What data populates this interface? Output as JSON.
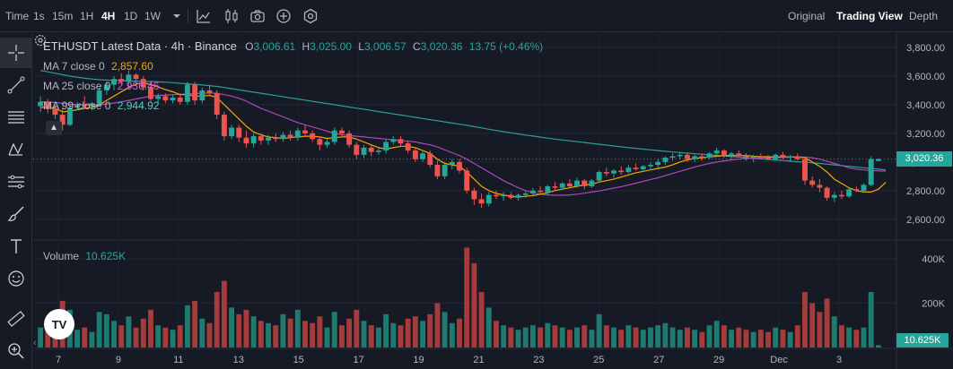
{
  "toolbar": {
    "time_label": "Time",
    "intervals": [
      "1s",
      "15m",
      "1H",
      "4H",
      "1D",
      "1W"
    ],
    "active_interval": "4H",
    "icons": [
      "chevron-down-icon",
      "line-chart-icon",
      "candles-icon",
      "camera-icon",
      "add-indicator-icon",
      "settings-gear-icon"
    ],
    "views": [
      "Original",
      "Trading View",
      "Depth"
    ],
    "active_view": "Trading View"
  },
  "left_tools": [
    "crosshair-icon",
    "trend-line-icon",
    "fib-lines-icon",
    "pattern-icon",
    "projection-icon",
    "brush-icon",
    "text-tool-icon",
    "emoji-icon",
    "ruler-icon",
    "zoom-in-icon"
  ],
  "legend": {
    "title": "ETHUSDT Latest Data · 4h · Binance",
    "o_label": "O",
    "o": "3,006.61",
    "h_label": "H",
    "h": "3,025.00",
    "l_label": "L",
    "l": "3,006.57",
    "c_label": "C",
    "c": "3,020.36",
    "change": "13.75 (+0.46%)",
    "ma7_label": "MA 7 close 0",
    "ma7_value": "2,857.60",
    "ma25_label": "MA 25 close 0",
    "ma25_value": "2,936.46",
    "ma99_label": "MA 99 close 0",
    "ma99_value": "2,944.92"
  },
  "volume": {
    "label": "Volume",
    "value": "10.625K",
    "tag": "10.625K"
  },
  "price_tag": "3,020.36",
  "logo_text": "TV",
  "colors": {
    "up": "#26a69a",
    "down": "#ef5350",
    "ma7": "#f7a600",
    "ma25": "#ab47bc",
    "ma99": "#2e9e94",
    "bg": "#161a25"
  },
  "chart_data": {
    "type": "candlestick",
    "price_axis_ticks": [
      3800,
      3600,
      3400,
      3200,
      3000,
      2800,
      2600
    ],
    "price_axis_labels": [
      "3,800.00",
      "3,600.00",
      "3,400.00",
      "3,200.00",
      "3,000.00",
      "2,800.00",
      "2,600.00"
    ],
    "volume_axis_ticks": [
      400000,
      200000
    ],
    "volume_axis_labels": [
      "400K",
      "200K"
    ],
    "x_tick_labels": [
      "7",
      "9",
      "11",
      "13",
      "15",
      "17",
      "19",
      "21",
      "23",
      "25",
      "27",
      "29",
      "Dec",
      "3"
    ],
    "ylim": [
      2480,
      3900
    ],
    "volume_ylim": [
      0,
      480000
    ],
    "candles": [
      {
        "o": 3390,
        "h": 3460,
        "l": 3350,
        "c": 3420,
        "v": 90000
      },
      {
        "o": 3420,
        "h": 3440,
        "l": 3340,
        "c": 3370,
        "v": 110000
      },
      {
        "o": 3370,
        "h": 3400,
        "l": 3300,
        "c": 3330,
        "v": 130000
      },
      {
        "o": 3330,
        "h": 3380,
        "l": 3220,
        "c": 3260,
        "v": 210000
      },
      {
        "o": 3260,
        "h": 3400,
        "l": 3250,
        "c": 3380,
        "v": 170000
      },
      {
        "o": 3380,
        "h": 3420,
        "l": 3360,
        "c": 3400,
        "v": 80000
      },
      {
        "o": 3400,
        "h": 3460,
        "l": 3370,
        "c": 3390,
        "v": 90000
      },
      {
        "o": 3390,
        "h": 3420,
        "l": 3360,
        "c": 3410,
        "v": 70000
      },
      {
        "o": 3410,
        "h": 3520,
        "l": 3390,
        "c": 3500,
        "v": 160000
      },
      {
        "o": 3500,
        "h": 3560,
        "l": 3470,
        "c": 3540,
        "v": 150000
      },
      {
        "o": 3540,
        "h": 3600,
        "l": 3500,
        "c": 3580,
        "v": 120000
      },
      {
        "o": 3580,
        "h": 3620,
        "l": 3540,
        "c": 3560,
        "v": 100000
      },
      {
        "o": 3560,
        "h": 3640,
        "l": 3530,
        "c": 3610,
        "v": 140000
      },
      {
        "o": 3610,
        "h": 3620,
        "l": 3560,
        "c": 3580,
        "v": 90000
      },
      {
        "o": 3580,
        "h": 3600,
        "l": 3500,
        "c": 3520,
        "v": 130000
      },
      {
        "o": 3520,
        "h": 3560,
        "l": 3420,
        "c": 3440,
        "v": 170000
      },
      {
        "o": 3440,
        "h": 3480,
        "l": 3400,
        "c": 3460,
        "v": 100000
      },
      {
        "o": 3460,
        "h": 3480,
        "l": 3410,
        "c": 3430,
        "v": 90000
      },
      {
        "o": 3430,
        "h": 3470,
        "l": 3410,
        "c": 3450,
        "v": 80000
      },
      {
        "o": 3450,
        "h": 3480,
        "l": 3400,
        "c": 3420,
        "v": 100000
      },
      {
        "o": 3420,
        "h": 3560,
        "l": 3400,
        "c": 3540,
        "v": 190000
      },
      {
        "o": 3540,
        "h": 3560,
        "l": 3400,
        "c": 3430,
        "v": 210000
      },
      {
        "o": 3430,
        "h": 3520,
        "l": 3410,
        "c": 3500,
        "v": 130000
      },
      {
        "o": 3500,
        "h": 3540,
        "l": 3460,
        "c": 3480,
        "v": 110000
      },
      {
        "o": 3480,
        "h": 3500,
        "l": 3300,
        "c": 3330,
        "v": 250000
      },
      {
        "o": 3330,
        "h": 3350,
        "l": 3150,
        "c": 3180,
        "v": 300000
      },
      {
        "o": 3180,
        "h": 3260,
        "l": 3160,
        "c": 3240,
        "v": 180000
      },
      {
        "o": 3240,
        "h": 3260,
        "l": 3140,
        "c": 3170,
        "v": 150000
      },
      {
        "o": 3170,
        "h": 3220,
        "l": 3100,
        "c": 3130,
        "v": 170000
      },
      {
        "o": 3130,
        "h": 3200,
        "l": 3100,
        "c": 3180,
        "v": 140000
      },
      {
        "o": 3180,
        "h": 3200,
        "l": 3120,
        "c": 3150,
        "v": 120000
      },
      {
        "o": 3150,
        "h": 3190,
        "l": 3120,
        "c": 3170,
        "v": 110000
      },
      {
        "o": 3170,
        "h": 3200,
        "l": 3140,
        "c": 3160,
        "v": 100000
      },
      {
        "o": 3160,
        "h": 3210,
        "l": 3140,
        "c": 3190,
        "v": 150000
      },
      {
        "o": 3190,
        "h": 3220,
        "l": 3150,
        "c": 3170,
        "v": 130000
      },
      {
        "o": 3170,
        "h": 3240,
        "l": 3150,
        "c": 3220,
        "v": 170000
      },
      {
        "o": 3220,
        "h": 3260,
        "l": 3180,
        "c": 3200,
        "v": 120000
      },
      {
        "o": 3200,
        "h": 3220,
        "l": 3140,
        "c": 3160,
        "v": 110000
      },
      {
        "o": 3160,
        "h": 3180,
        "l": 3080,
        "c": 3120,
        "v": 140000
      },
      {
        "o": 3120,
        "h": 3160,
        "l": 3100,
        "c": 3140,
        "v": 90000
      },
      {
        "o": 3140,
        "h": 3240,
        "l": 3120,
        "c": 3220,
        "v": 160000
      },
      {
        "o": 3220,
        "h": 3240,
        "l": 3180,
        "c": 3200,
        "v": 100000
      },
      {
        "o": 3200,
        "h": 3220,
        "l": 3100,
        "c": 3120,
        "v": 130000
      },
      {
        "o": 3120,
        "h": 3140,
        "l": 3020,
        "c": 3050,
        "v": 170000
      },
      {
        "o": 3050,
        "h": 3120,
        "l": 3030,
        "c": 3100,
        "v": 120000
      },
      {
        "o": 3100,
        "h": 3120,
        "l": 3040,
        "c": 3070,
        "v": 100000
      },
      {
        "o": 3070,
        "h": 3100,
        "l": 3050,
        "c": 3080,
        "v": 90000
      },
      {
        "o": 3080,
        "h": 3160,
        "l": 3060,
        "c": 3140,
        "v": 150000
      },
      {
        "o": 3140,
        "h": 3180,
        "l": 3120,
        "c": 3160,
        "v": 110000
      },
      {
        "o": 3160,
        "h": 3180,
        "l": 3110,
        "c": 3130,
        "v": 100000
      },
      {
        "o": 3130,
        "h": 3150,
        "l": 3060,
        "c": 3080,
        "v": 130000
      },
      {
        "o": 3080,
        "h": 3100,
        "l": 3000,
        "c": 3020,
        "v": 140000
      },
      {
        "o": 3020,
        "h": 3080,
        "l": 3000,
        "c": 3060,
        "v": 120000
      },
      {
        "o": 3060,
        "h": 3080,
        "l": 2960,
        "c": 2980,
        "v": 150000
      },
      {
        "o": 2980,
        "h": 3010,
        "l": 2880,
        "c": 2900,
        "v": 200000
      },
      {
        "o": 2900,
        "h": 3000,
        "l": 2880,
        "c": 2980,
        "v": 160000
      },
      {
        "o": 2980,
        "h": 3020,
        "l": 2950,
        "c": 3000,
        "v": 110000
      },
      {
        "o": 3000,
        "h": 3020,
        "l": 2920,
        "c": 2940,
        "v": 130000
      },
      {
        "o": 2940,
        "h": 2960,
        "l": 2780,
        "c": 2800,
        "v": 450000
      },
      {
        "o": 2800,
        "h": 2820,
        "l": 2700,
        "c": 2740,
        "v": 380000
      },
      {
        "o": 2740,
        "h": 2780,
        "l": 2680,
        "c": 2710,
        "v": 250000
      },
      {
        "o": 2710,
        "h": 2790,
        "l": 2690,
        "c": 2770,
        "v": 180000
      },
      {
        "o": 2770,
        "h": 2800,
        "l": 2740,
        "c": 2760,
        "v": 120000
      },
      {
        "o": 2760,
        "h": 2790,
        "l": 2730,
        "c": 2770,
        "v": 100000
      },
      {
        "o": 2770,
        "h": 2790,
        "l": 2740,
        "c": 2750,
        "v": 90000
      },
      {
        "o": 2750,
        "h": 2780,
        "l": 2730,
        "c": 2770,
        "v": 80000
      },
      {
        "o": 2770,
        "h": 2800,
        "l": 2750,
        "c": 2780,
        "v": 90000
      },
      {
        "o": 2780,
        "h": 2820,
        "l": 2760,
        "c": 2800,
        "v": 100000
      },
      {
        "o": 2800,
        "h": 2830,
        "l": 2780,
        "c": 2790,
        "v": 90000
      },
      {
        "o": 2790,
        "h": 2840,
        "l": 2770,
        "c": 2830,
        "v": 110000
      },
      {
        "o": 2830,
        "h": 2860,
        "l": 2800,
        "c": 2820,
        "v": 100000
      },
      {
        "o": 2820,
        "h": 2860,
        "l": 2810,
        "c": 2850,
        "v": 90000
      },
      {
        "o": 2850,
        "h": 2880,
        "l": 2820,
        "c": 2830,
        "v": 80000
      },
      {
        "o": 2830,
        "h": 2890,
        "l": 2820,
        "c": 2870,
        "v": 90000
      },
      {
        "o": 2870,
        "h": 2880,
        "l": 2810,
        "c": 2830,
        "v": 100000
      },
      {
        "o": 2830,
        "h": 2880,
        "l": 2820,
        "c": 2870,
        "v": 80000
      },
      {
        "o": 2870,
        "h": 2940,
        "l": 2860,
        "c": 2930,
        "v": 150000
      },
      {
        "o": 2930,
        "h": 2960,
        "l": 2900,
        "c": 2920,
        "v": 100000
      },
      {
        "o": 2920,
        "h": 2950,
        "l": 2890,
        "c": 2940,
        "v": 90000
      },
      {
        "o": 2940,
        "h": 2970,
        "l": 2910,
        "c": 2930,
        "v": 80000
      },
      {
        "o": 2930,
        "h": 2980,
        "l": 2920,
        "c": 2960,
        "v": 100000
      },
      {
        "o": 2960,
        "h": 2990,
        "l": 2940,
        "c": 2950,
        "v": 90000
      },
      {
        "o": 2950,
        "h": 2980,
        "l": 2930,
        "c": 2970,
        "v": 80000
      },
      {
        "o": 2970,
        "h": 3000,
        "l": 2950,
        "c": 2980,
        "v": 90000
      },
      {
        "o": 2980,
        "h": 3020,
        "l": 2960,
        "c": 3000,
        "v": 100000
      },
      {
        "o": 3000,
        "h": 3040,
        "l": 2980,
        "c": 3030,
        "v": 110000
      },
      {
        "o": 3030,
        "h": 3060,
        "l": 3010,
        "c": 3040,
        "v": 90000
      },
      {
        "o": 3040,
        "h": 3070,
        "l": 3020,
        "c": 3050,
        "v": 80000
      },
      {
        "o": 3050,
        "h": 3060,
        "l": 3000,
        "c": 3020,
        "v": 90000
      },
      {
        "o": 3020,
        "h": 3050,
        "l": 3000,
        "c": 3040,
        "v": 80000
      },
      {
        "o": 3040,
        "h": 3060,
        "l": 3010,
        "c": 3030,
        "v": 70000
      },
      {
        "o": 3030,
        "h": 3070,
        "l": 3020,
        "c": 3060,
        "v": 100000
      },
      {
        "o": 3060,
        "h": 3100,
        "l": 3040,
        "c": 3080,
        "v": 120000
      },
      {
        "o": 3080,
        "h": 3090,
        "l": 3030,
        "c": 3050,
        "v": 100000
      },
      {
        "o": 3050,
        "h": 3070,
        "l": 3020,
        "c": 3060,
        "v": 80000
      },
      {
        "o": 3060,
        "h": 3080,
        "l": 3030,
        "c": 3040,
        "v": 90000
      },
      {
        "o": 3040,
        "h": 3060,
        "l": 3010,
        "c": 3030,
        "v": 80000
      },
      {
        "o": 3030,
        "h": 3050,
        "l": 3000,
        "c": 3040,
        "v": 70000
      },
      {
        "o": 3040,
        "h": 3060,
        "l": 3020,
        "c": 3030,
        "v": 80000
      },
      {
        "o": 3030,
        "h": 3050,
        "l": 3010,
        "c": 3020,
        "v": 70000
      },
      {
        "o": 3020,
        "h": 3060,
        "l": 3010,
        "c": 3050,
        "v": 90000
      },
      {
        "o": 3050,
        "h": 3070,
        "l": 3020,
        "c": 3030,
        "v": 80000
      },
      {
        "o": 3030,
        "h": 3050,
        "l": 3000,
        "c": 3040,
        "v": 70000
      },
      {
        "o": 3040,
        "h": 3060,
        "l": 3010,
        "c": 3020,
        "v": 100000
      },
      {
        "o": 3020,
        "h": 3030,
        "l": 2840,
        "c": 2870,
        "v": 250000
      },
      {
        "o": 2870,
        "h": 2900,
        "l": 2820,
        "c": 2840,
        "v": 200000
      },
      {
        "o": 2840,
        "h": 2880,
        "l": 2790,
        "c": 2820,
        "v": 160000
      },
      {
        "o": 2820,
        "h": 2830,
        "l": 2730,
        "c": 2750,
        "v": 220000
      },
      {
        "o": 2750,
        "h": 2790,
        "l": 2720,
        "c": 2770,
        "v": 140000
      },
      {
        "o": 2770,
        "h": 2800,
        "l": 2740,
        "c": 2760,
        "v": 100000
      },
      {
        "o": 2760,
        "h": 2820,
        "l": 2750,
        "c": 2810,
        "v": 90000
      },
      {
        "o": 2810,
        "h": 2830,
        "l": 2790,
        "c": 2800,
        "v": 80000
      },
      {
        "o": 2800,
        "h": 2850,
        "l": 2790,
        "c": 2840,
        "v": 90000
      },
      {
        "o": 2840,
        "h": 3040,
        "l": 2830,
        "c": 3020,
        "v": 250000
      },
      {
        "o": 3006.61,
        "h": 3025,
        "l": 3006.57,
        "c": 3020.36,
        "v": 10625
      }
    ],
    "ma7": [
      3380,
      3385,
      3375,
      3350,
      3355,
      3365,
      3375,
      3380,
      3400,
      3430,
      3460,
      3490,
      3520,
      3545,
      3555,
      3540,
      3525,
      3505,
      3490,
      3470,
      3470,
      3460,
      3460,
      3465,
      3450,
      3400,
      3350,
      3300,
      3250,
      3210,
      3190,
      3175,
      3170,
      3165,
      3170,
      3175,
      3180,
      3180,
      3175,
      3165,
      3170,
      3175,
      3175,
      3160,
      3140,
      3120,
      3100,
      3090,
      3100,
      3110,
      3110,
      3100,
      3080,
      3060,
      3020,
      2990,
      2980,
      2970,
      2930,
      2880,
      2830,
      2800,
      2780,
      2770,
      2760,
      2755,
      2760,
      2765,
      2775,
      2785,
      2800,
      2810,
      2820,
      2830,
      2840,
      2845,
      2860,
      2870,
      2880,
      2895,
      2910,
      2925,
      2935,
      2945,
      2955,
      2965,
      2980,
      3000,
      3015,
      3025,
      3030,
      3035,
      3040,
      3045,
      3045,
      3045,
      3045,
      3040,
      3038,
      3036,
      3035,
      3035,
      3035,
      3035,
      3030,
      3000,
      2970,
      2930,
      2880,
      2850,
      2820,
      2800,
      2790,
      2790,
      2810,
      2857.6
    ],
    "ma25": [
      3420,
      3420,
      3415,
      3410,
      3405,
      3400,
      3398,
      3397,
      3400,
      3405,
      3412,
      3420,
      3430,
      3440,
      3450,
      3460,
      3465,
      3468,
      3470,
      3472,
      3475,
      3478,
      3480,
      3482,
      3480,
      3470,
      3460,
      3445,
      3425,
      3400,
      3375,
      3355,
      3335,
      3315,
      3295,
      3275,
      3260,
      3245,
      3230,
      3215,
      3200,
      3190,
      3185,
      3180,
      3175,
      3170,
      3165,
      3160,
      3155,
      3150,
      3145,
      3140,
      3130,
      3120,
      3105,
      3085,
      3065,
      3045,
      3020,
      2990,
      2960,
      2930,
      2900,
      2870,
      2845,
      2820,
      2800,
      2785,
      2775,
      2770,
      2768,
      2768,
      2770,
      2775,
      2782,
      2790,
      2798,
      2808,
      2818,
      2828,
      2840,
      2852,
      2865,
      2878,
      2890,
      2905,
      2920,
      2935,
      2950,
      2965,
      2978,
      2990,
      3000,
      3008,
      3015,
      3020,
      3025,
      3028,
      3030,
      3031,
      3032,
      3033,
      3034,
      3035,
      3035,
      3030,
      3020,
      3005,
      2990,
      2975,
      2960,
      2950,
      2945,
      2940,
      2938,
      2936.46
    ],
    "ma99": [
      3640,
      3630,
      3620,
      3610,
      3600,
      3592,
      3585,
      3580,
      3575,
      3572,
      3570,
      3568,
      3566,
      3565,
      3564,
      3562,
      3560,
      3557,
      3554,
      3550,
      3546,
      3542,
      3538,
      3533,
      3528,
      3520,
      3512,
      3504,
      3496,
      3488,
      3480,
      3472,
      3464,
      3456,
      3448,
      3440,
      3432,
      3424,
      3416,
      3408,
      3400,
      3392,
      3384,
      3376,
      3368,
      3360,
      3352,
      3344,
      3336,
      3328,
      3320,
      3312,
      3304,
      3296,
      3288,
      3280,
      3272,
      3264,
      3256,
      3247,
      3238,
      3229,
      3220,
      3212,
      3204,
      3196,
      3188,
      3181,
      3174,
      3167,
      3160,
      3154,
      3148,
      3142,
      3136,
      3130,
      3124,
      3118,
      3112,
      3106,
      3100,
      3095,
      3090,
      3085,
      3080,
      3075,
      3070,
      3066,
      3062,
      3058,
      3054,
      3050,
      3046,
      3042,
      3038,
      3034,
      3030,
      3026,
      3022,
      3018,
      3014,
      3010,
      3006,
      3002,
      2998,
      2994,
      2990,
      2985,
      2980,
      2975,
      2970,
      2965,
      2960,
      2955,
      2950,
      2944.92
    ]
  }
}
